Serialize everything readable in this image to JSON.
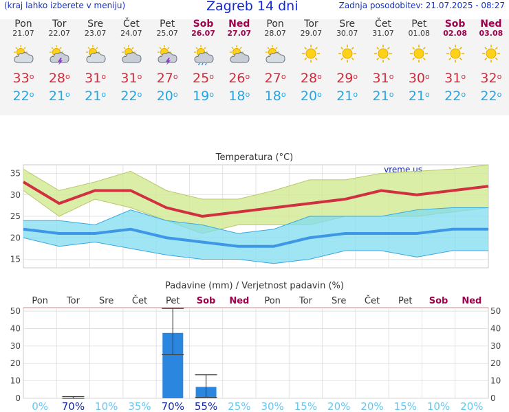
{
  "header": {
    "hint": "(kraj lahko izberete v meniju)",
    "title": "Zagreb 14 dni",
    "updated": "Zadnja posodobitev: 21.07.2025 - 08:27"
  },
  "days": [
    {
      "name": "Pon",
      "date": "21.07",
      "weekend": false,
      "icon": "sun-cloud-icon",
      "max": "33",
      "min": "22"
    },
    {
      "name": "Tor",
      "date": "22.07",
      "weekend": false,
      "icon": "thunderstorm-icon",
      "max": "28",
      "min": "21"
    },
    {
      "name": "Sre",
      "date": "23.07",
      "weekend": false,
      "icon": "sun-cloud-icon",
      "max": "31",
      "min": "21"
    },
    {
      "name": "Čet",
      "date": "24.07",
      "weekend": false,
      "icon": "cloud-icon",
      "max": "31",
      "min": "22"
    },
    {
      "name": "Pet",
      "date": "25.07",
      "weekend": false,
      "icon": "thunderstorm-icon",
      "max": "27",
      "min": "20"
    },
    {
      "name": "Sob",
      "date": "26.07",
      "weekend": true,
      "icon": "rain-icon",
      "max": "25",
      "min": "19"
    },
    {
      "name": "Ned",
      "date": "27.07",
      "weekend": true,
      "icon": "cloud-icon",
      "max": "26",
      "min": "18"
    },
    {
      "name": "Pon",
      "date": "28.07",
      "weekend": false,
      "icon": "sun-cloud-icon",
      "max": "27",
      "min": "18"
    },
    {
      "name": "Tor",
      "date": "29.07",
      "weekend": false,
      "icon": "sun-icon",
      "max": "28",
      "min": "20"
    },
    {
      "name": "Sre",
      "date": "30.07",
      "weekend": false,
      "icon": "sun-icon",
      "max": "29",
      "min": "21"
    },
    {
      "name": "Čet",
      "date": "31.07",
      "weekend": false,
      "icon": "sun-icon",
      "max": "31",
      "min": "21"
    },
    {
      "name": "Pet",
      "date": "01.08",
      "weekend": false,
      "icon": "sun-icon",
      "max": "30",
      "min": "21"
    },
    {
      "name": "Sob",
      "date": "02.08",
      "weekend": true,
      "icon": "sun-icon",
      "max": "31",
      "min": "22"
    },
    {
      "name": "Ned",
      "date": "03.08",
      "weekend": true,
      "icon": "sun-icon",
      "max": "32",
      "min": "22"
    }
  ],
  "degree_symbol": "o",
  "colors": {
    "max": "#d42a3a",
    "min": "#20a8e6",
    "weekend": "#a0004c",
    "precip_bar": "#2b86e0",
    "prob_high": "#1428a0",
    "prob_low": "#66c8f0"
  },
  "chart_data": [
    {
      "type": "line",
      "title": "Temperatura (°C)",
      "watermark": "vreme.us",
      "categories": [
        "Pon",
        "Tor",
        "Sre",
        "Čet",
        "Pet",
        "Sob",
        "Ned",
        "Pon",
        "Tor",
        "Sre",
        "Čet",
        "Pet",
        "Sob",
        "Ned"
      ],
      "ylim": [
        13,
        37
      ],
      "yticks": [
        15,
        20,
        25,
        30,
        35
      ],
      "grid": true,
      "series": [
        {
          "role": "max",
          "values": [
            33,
            28,
            31,
            31,
            27,
            25,
            26,
            27,
            28,
            29,
            31,
            30,
            31,
            32
          ],
          "band_high": [
            36,
            31,
            33,
            35.5,
            31,
            29,
            29,
            31,
            33.5,
            33.5,
            35,
            35.5,
            36,
            37
          ],
          "band_low": [
            31,
            25,
            29,
            27,
            24,
            21,
            23,
            23,
            23,
            25,
            25,
            25,
            26,
            27
          ]
        },
        {
          "role": "min",
          "values": [
            22,
            21,
            21,
            22,
            20,
            19,
            18,
            18,
            20,
            21,
            21,
            21,
            22,
            22
          ],
          "band_high": [
            24,
            24,
            23,
            26.5,
            24,
            23,
            21,
            22,
            25,
            25,
            25,
            26.5,
            27,
            27
          ],
          "band_low": [
            20,
            18,
            19,
            17.5,
            16,
            15,
            15,
            14,
            15,
            17,
            17,
            15.5,
            17,
            17
          ]
        }
      ]
    },
    {
      "type": "bar",
      "title": "Padavine (mm) / Verjetnost padavin (%)",
      "categories": [
        "Pon",
        "Tor",
        "Sre",
        "Čet",
        "Pet",
        "Sob",
        "Ned",
        "Pon",
        "Tor",
        "Sre",
        "Čet",
        "Pet",
        "Sob",
        "Ned"
      ],
      "ylim": [
        0,
        52
      ],
      "yticks": [
        0,
        10,
        20,
        30,
        40,
        50
      ],
      "values": [
        0,
        0,
        0,
        0,
        37.5,
        6.5,
        0,
        0,
        0,
        0,
        0,
        0,
        0,
        0
      ],
      "range_high": [
        null,
        1,
        null,
        null,
        51.5,
        13.5,
        null,
        null,
        null,
        null,
        null,
        null,
        null,
        null
      ],
      "range_low": [
        null,
        0,
        null,
        null,
        25,
        0.5,
        null,
        null,
        null,
        null,
        null,
        null,
        null,
        null
      ],
      "probability": [
        "0%",
        "70%",
        "10%",
        "35%",
        "70%",
        "55%",
        "25%",
        "30%",
        "15%",
        "20%",
        "20%",
        "15%",
        "10%",
        "20%"
      ]
    }
  ]
}
